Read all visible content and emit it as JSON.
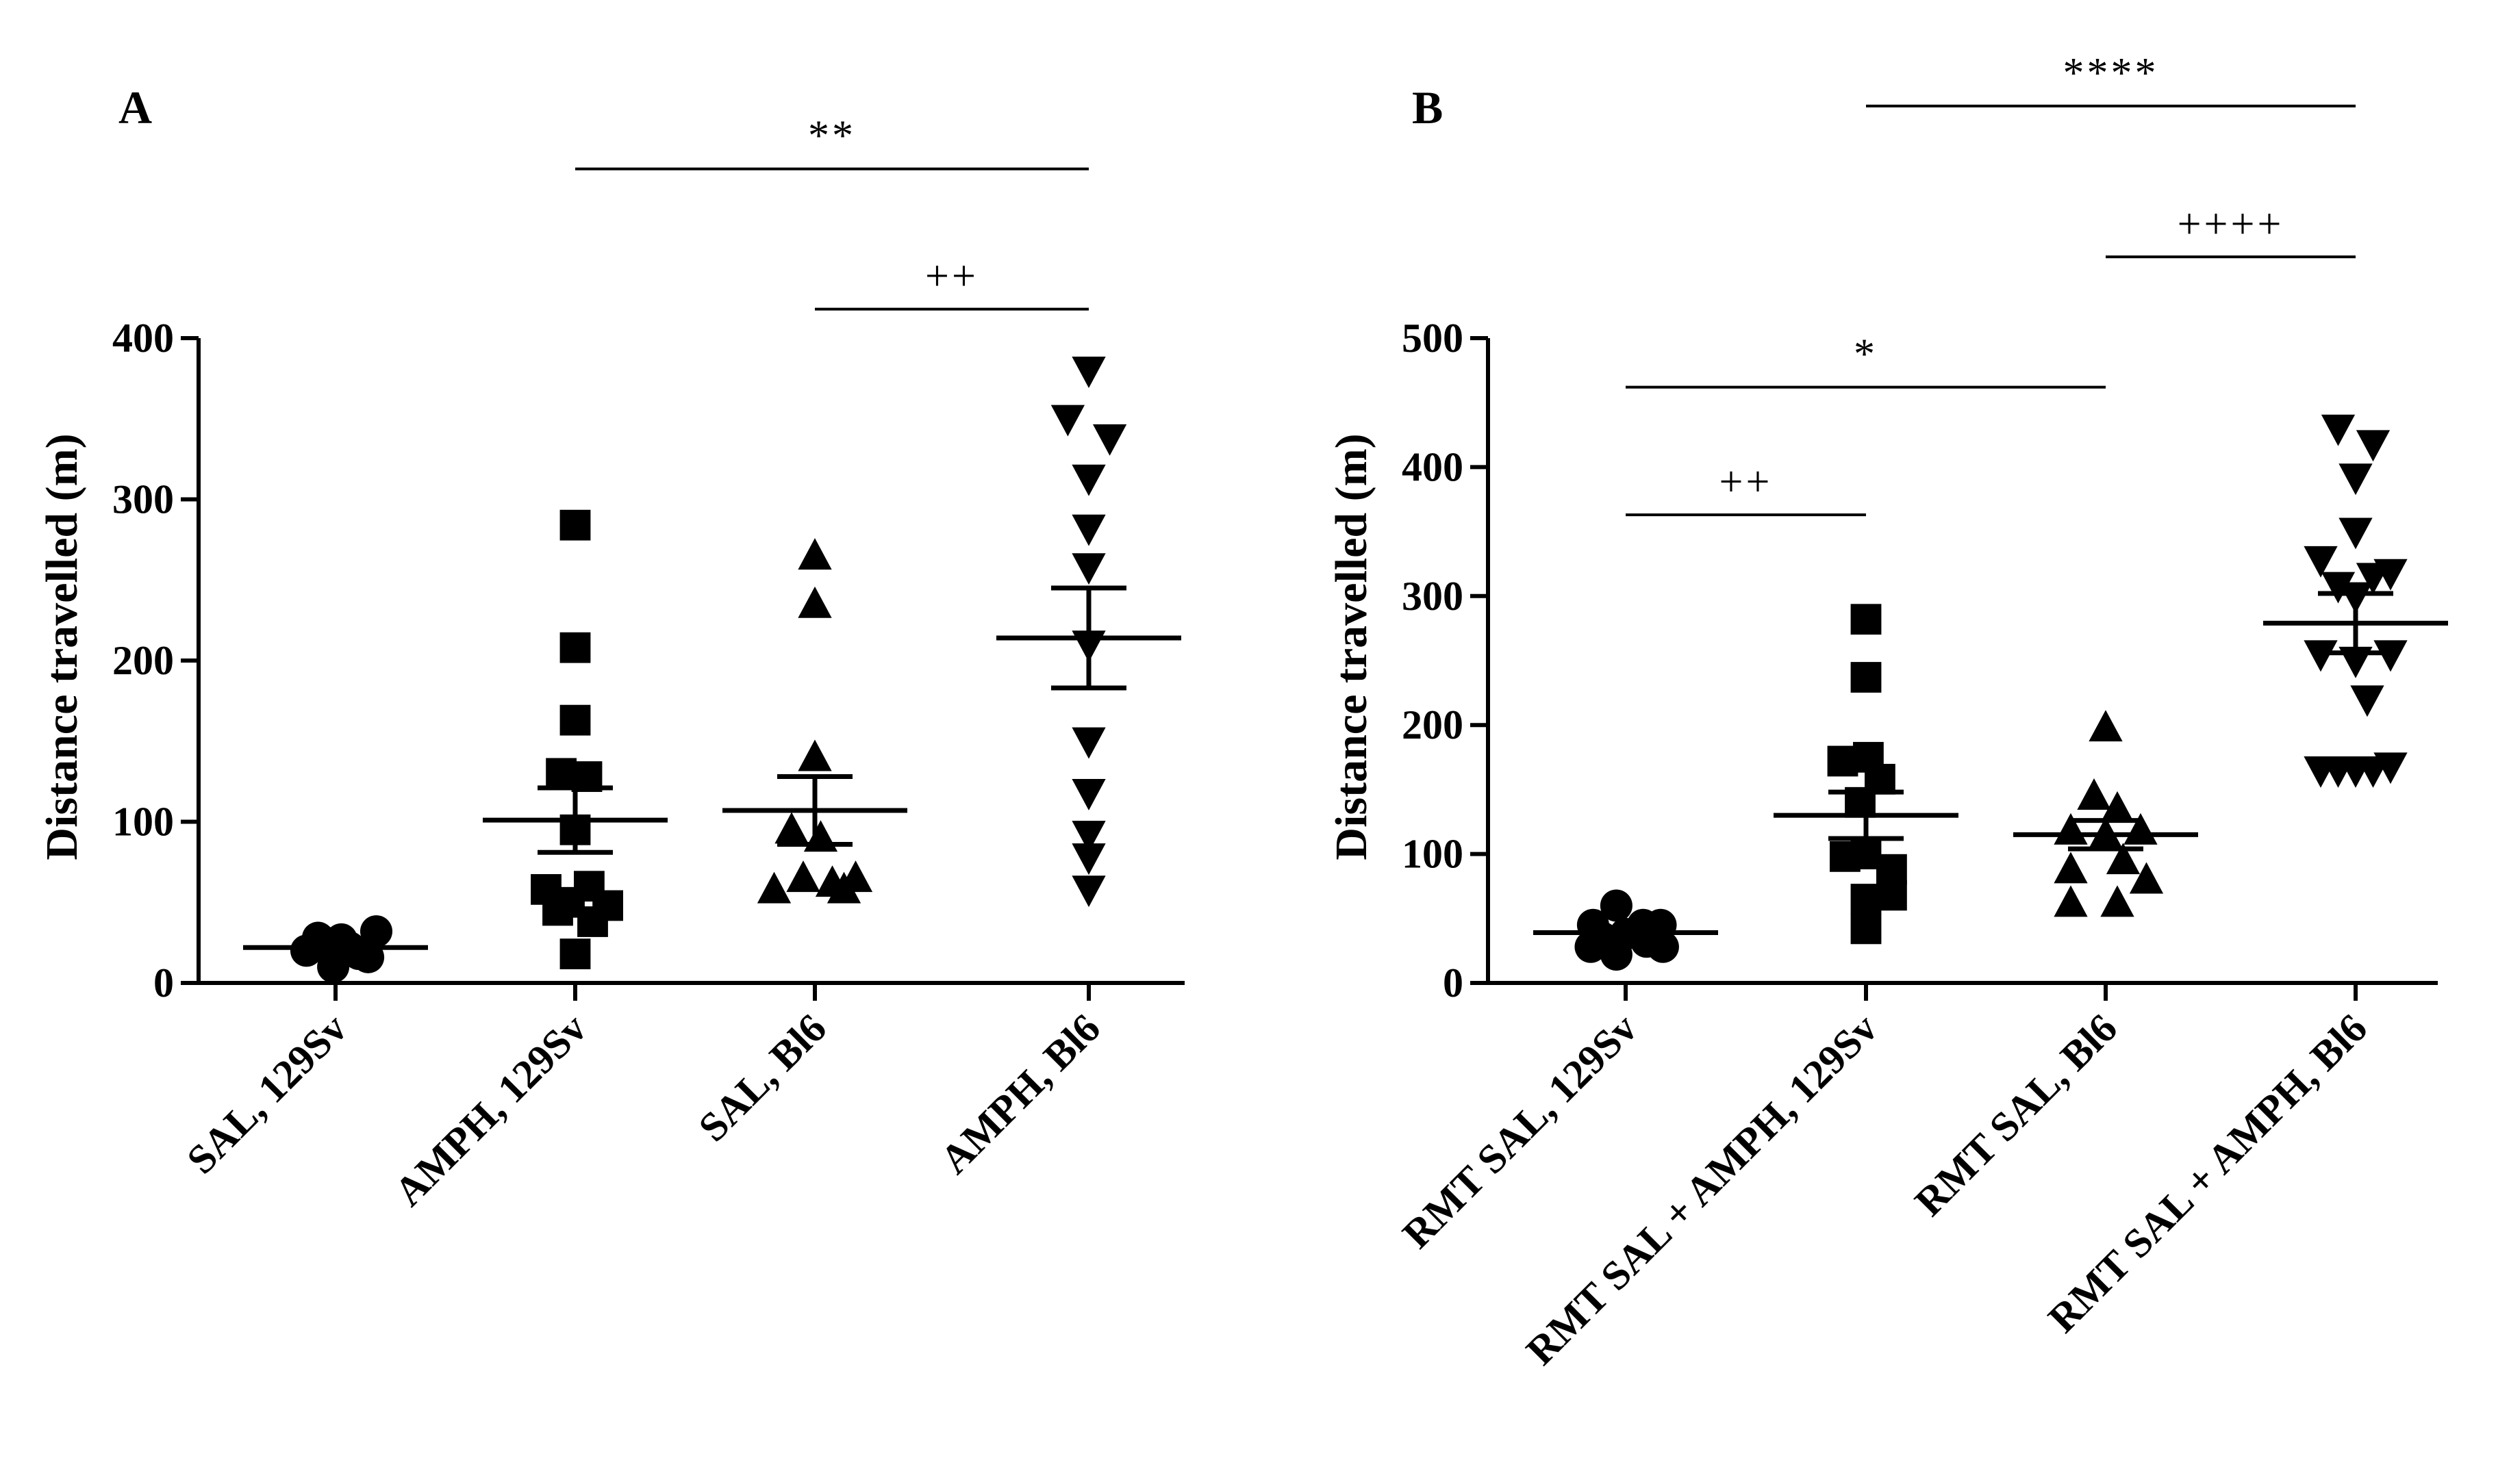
{
  "chart_data": [
    {
      "panel": "A",
      "type": "scatter",
      "ylabel": "Distance travelled (m)",
      "ylim": [
        0,
        400
      ],
      "yticks": [
        0,
        100,
        200,
        300,
        400
      ],
      "categories": [
        "SAL, 129Sv",
        "AMPH, 129Sv",
        "SAL, Bl6",
        "AMPH, Bl6"
      ],
      "markers": [
        "circle",
        "square",
        "triangle-up",
        "triangle-down"
      ],
      "groups": [
        {
          "name": "SAL, 129Sv",
          "mean": 22,
          "sem": 2,
          "points": [
            [
              -0.25,
              20
            ],
            [
              -0.15,
              28
            ],
            [
              -0.08,
              25
            ],
            [
              0.0,
              20
            ],
            [
              0.05,
              27
            ],
            [
              0.12,
              22
            ],
            [
              0.2,
              18
            ],
            [
              0.28,
              16
            ],
            [
              0.35,
              32
            ],
            [
              -0.02,
              10
            ]
          ]
        },
        {
          "name": "AMPH, 129Sv",
          "mean": 101,
          "sem": 20,
          "points": [
            [
              0.0,
              284
            ],
            [
              0.0,
              208
            ],
            [
              0.0,
              163
            ],
            [
              -0.12,
              130
            ],
            [
              0.1,
              128
            ],
            [
              -0.25,
              58
            ],
            [
              -0.05,
              50
            ],
            [
              0.12,
              60
            ],
            [
              0.28,
              48
            ],
            [
              -0.15,
              45
            ],
            [
              0.15,
              38
            ],
            [
              0.0,
              18
            ],
            [
              0.0,
              95
            ]
          ]
        },
        {
          "name": "SAL, Bl6",
          "mean": 107,
          "sem": 21,
          "points": [
            [
              0.0,
              265
            ],
            [
              0.0,
              235
            ],
            [
              0.0,
              140
            ],
            [
              -0.2,
              95
            ],
            [
              0.05,
              90
            ],
            [
              -0.35,
              58
            ],
            [
              -0.1,
              65
            ],
            [
              0.15,
              62
            ],
            [
              0.35,
              65
            ],
            [
              0.25,
              58
            ]
          ]
        },
        {
          "name": "AMPH, Bl6",
          "mean": 214,
          "sem": 31,
          "points": [
            [
              0.0,
              380
            ],
            [
              -0.18,
              350
            ],
            [
              0.18,
              338
            ],
            [
              0.0,
              313
            ],
            [
              0.0,
              282
            ],
            [
              0.0,
              258
            ],
            [
              0.0,
              210
            ],
            [
              0.0,
              150
            ],
            [
              0.0,
              118
            ],
            [
              0.0,
              92
            ],
            [
              0.0,
              78
            ],
            [
              0.0,
              58
            ]
          ]
        }
      ],
      "comparisons": [
        {
          "from": 1,
          "to": 3,
          "label": "**",
          "y": 505
        },
        {
          "from": 2,
          "to": 3,
          "label": "++",
          "y": 418
        }
      ]
    },
    {
      "panel": "B",
      "type": "scatter",
      "ylabel": "Distance travelled (m)",
      "ylim": [
        0,
        500
      ],
      "yticks": [
        0,
        100,
        200,
        300,
        400,
        500
      ],
      "categories": [
        "RMT SAL, 129Sv",
        "RMT SAL + AMPH, 129Sv",
        "RMT SAL, Bl6",
        "RMT SAL + AMPH, Bl6"
      ],
      "markers": [
        "circle",
        "square",
        "triangle-up",
        "triangle-down"
      ],
      "groups": [
        {
          "name": "RMT SAL, 129Sv",
          "mean": 39,
          "sem": 4,
          "points": [
            [
              -0.28,
              45
            ],
            [
              -0.08,
              60
            ],
            [
              0.15,
              45
            ],
            [
              0.3,
              45
            ],
            [
              -0.2,
              35
            ],
            [
              0.0,
              38
            ],
            [
              0.18,
              32
            ],
            [
              -0.3,
              28
            ],
            [
              0.32,
              28
            ],
            [
              -0.08,
              22
            ]
          ]
        },
        {
          "name": "RMT SAL + AMPH, 129Sv",
          "mean": 130,
          "sem": 18,
          "points": [
            [
              0.0,
              282
            ],
            [
              0.0,
              237
            ],
            [
              -0.2,
              172
            ],
            [
              0.02,
              175
            ],
            [
              0.12,
              158
            ],
            [
              -0.18,
              98
            ],
            [
              0.0,
              100
            ],
            [
              0.22,
              88
            ],
            [
              0.22,
              68
            ],
            [
              0.0,
              65
            ],
            [
              0.0,
              42
            ],
            [
              -0.05,
              140
            ]
          ]
        },
        {
          "name": "RMT SAL, Bl6",
          "mean": 115,
          "sem": 11,
          "points": [
            [
              0.0,
              198
            ],
            [
              -0.1,
              145
            ],
            [
              0.1,
              135
            ],
            [
              -0.3,
              118
            ],
            [
              0.0,
              115
            ],
            [
              0.3,
              118
            ],
            [
              -0.3,
              88
            ],
            [
              0.15,
              95
            ],
            [
              0.35,
              80
            ],
            [
              -0.3,
              62
            ],
            [
              0.1,
              62
            ]
          ]
        },
        {
          "name": "RMT SAL + AMPH, Bl6",
          "mean": 279,
          "sem": 23,
          "points": [
            [
              -0.15,
              430
            ],
            [
              0.15,
              418
            ],
            [
              0.0,
              392
            ],
            [
              0.0,
              350
            ],
            [
              -0.3,
              328
            ],
            [
              0.3,
              318
            ],
            [
              0.15,
              315
            ],
            [
              -0.15,
              308
            ],
            [
              0.0,
              300
            ],
            [
              -0.3,
              255
            ],
            [
              0.0,
              250
            ],
            [
              0.3,
              255
            ],
            [
              -0.3,
              165
            ],
            [
              -0.15,
              165
            ],
            [
              0.0,
              165
            ],
            [
              0.15,
              165
            ],
            [
              0.3,
              168
            ],
            [
              0.1,
              220
            ]
          ]
        }
      ],
      "comparisons": [
        {
          "from": 1,
          "to": 3,
          "label": "****",
          "y": 680
        },
        {
          "from": 2,
          "to": 3,
          "label": "++++",
          "y": 563
        },
        {
          "from": 0,
          "to": 2,
          "label": "*",
          "y": 462
        },
        {
          "from": 0,
          "to": 1,
          "label": "++",
          "y": 363
        }
      ]
    }
  ]
}
